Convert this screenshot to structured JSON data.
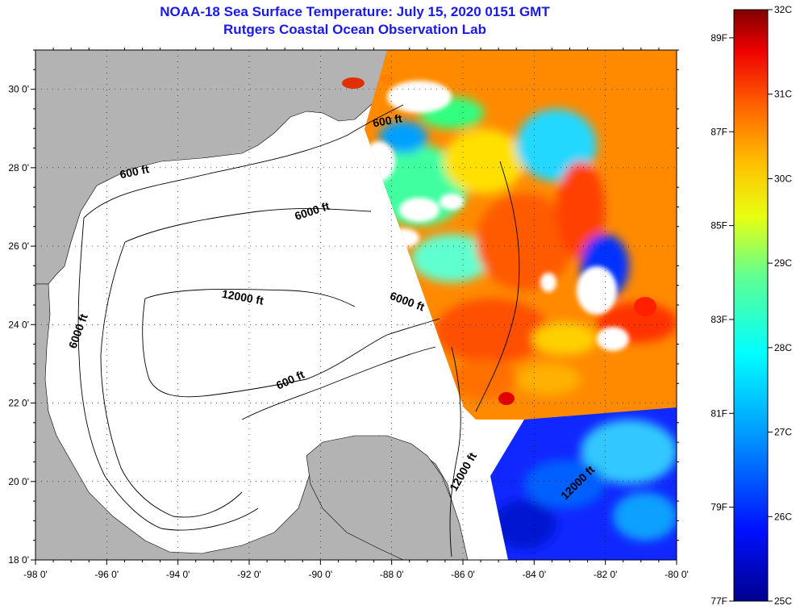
{
  "title": {
    "line1": "NOAA-18 Sea Surface Temperature:  July 15, 2020 0151 GMT",
    "line2": "Rutgers Coastal Ocean Observation Lab"
  },
  "map": {
    "lon_range": [
      -98,
      -80
    ],
    "lat_range": [
      18,
      31
    ],
    "lon_ticks": [
      "-98 0'",
      "-96 0'",
      "-94 0'",
      "-92 0'",
      "-90 0'",
      "-88 0'",
      "-86 0'",
      "-84 0'",
      "-82 0'",
      "-80 0'"
    ],
    "lat_ticks": [
      "18 0'",
      "20 0'",
      "22 0'",
      "24 0'",
      "26 0'",
      "28 0'",
      "30 0'"
    ],
    "contour_labels": [
      {
        "text": "600 ft",
        "lon": -95.2,
        "lat": 27.8,
        "angle": -12
      },
      {
        "text": "6000 ft",
        "lon": -90.2,
        "lat": 26.8,
        "angle": -18
      },
      {
        "text": "600 ft",
        "lon": -88.1,
        "lat": 29.1,
        "angle": -10
      },
      {
        "text": "12000 ft",
        "lon": -92.2,
        "lat": 24.6,
        "angle": 10
      },
      {
        "text": "6000 ft",
        "lon": -96.7,
        "lat": 23.8,
        "angle": -70
      },
      {
        "text": "6000 ft",
        "lon": -87.6,
        "lat": 24.5,
        "angle": 20
      },
      {
        "text": "600 ft",
        "lon": -90.8,
        "lat": 22.5,
        "angle": -25
      },
      {
        "text": "12000 ft",
        "lon": -85.9,
        "lat": 20.2,
        "angle": -60
      },
      {
        "text": "12000 ft",
        "lon": -82.7,
        "lat": 19.9,
        "angle": -45
      }
    ],
    "colors": {
      "land": "#b3b3b3",
      "no_data": "#ffffff",
      "contour": "#000000"
    }
  },
  "colorbar": {
    "celsius_labels": [
      "32C",
      "31C",
      "30C",
      "29C",
      "28C",
      "27C",
      "26C",
      "25C"
    ],
    "celsius_values": [
      32,
      31,
      30,
      29,
      28,
      27,
      26,
      25
    ],
    "fahrenheit_labels": [
      "89F",
      "87F",
      "85F",
      "83F",
      "81F",
      "79F",
      "77F"
    ],
    "fahrenheit_values": [
      89,
      87,
      85,
      83,
      81,
      79,
      77
    ],
    "range_c": [
      25,
      32
    ]
  }
}
